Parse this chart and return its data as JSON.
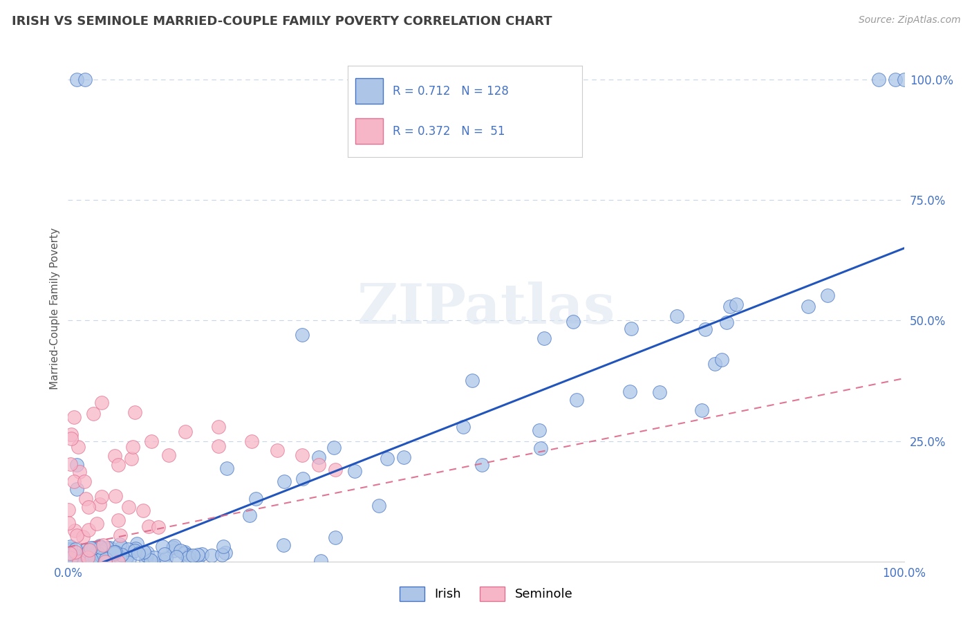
{
  "title": "IRISH VS SEMINOLE MARRIED-COUPLE FAMILY POVERTY CORRELATION CHART",
  "source": "Source: ZipAtlas.com",
  "ylabel": "Married-Couple Family Poverty",
  "irish_R": 0.712,
  "irish_N": 128,
  "seminole_R": 0.372,
  "seminole_N": 51,
  "irish_face_color": "#adc6e8",
  "irish_edge_color": "#4472c4",
  "seminole_face_color": "#f7b6c8",
  "seminole_edge_color": "#e07090",
  "irish_line_color": "#2255bb",
  "seminole_line_color": "#dd6688",
  "legend_text_color": "#4472c4",
  "title_color": "#404040",
  "axis_tick_color": "#4472c4",
  "watermark": "ZIPatlas",
  "background_color": "#ffffff",
  "grid_color": "#c8d4e8",
  "irish_trend_slope": 0.68,
  "irish_trend_intercept": -0.03,
  "seminole_trend_slope": 0.35,
  "seminole_trend_intercept": 0.03
}
